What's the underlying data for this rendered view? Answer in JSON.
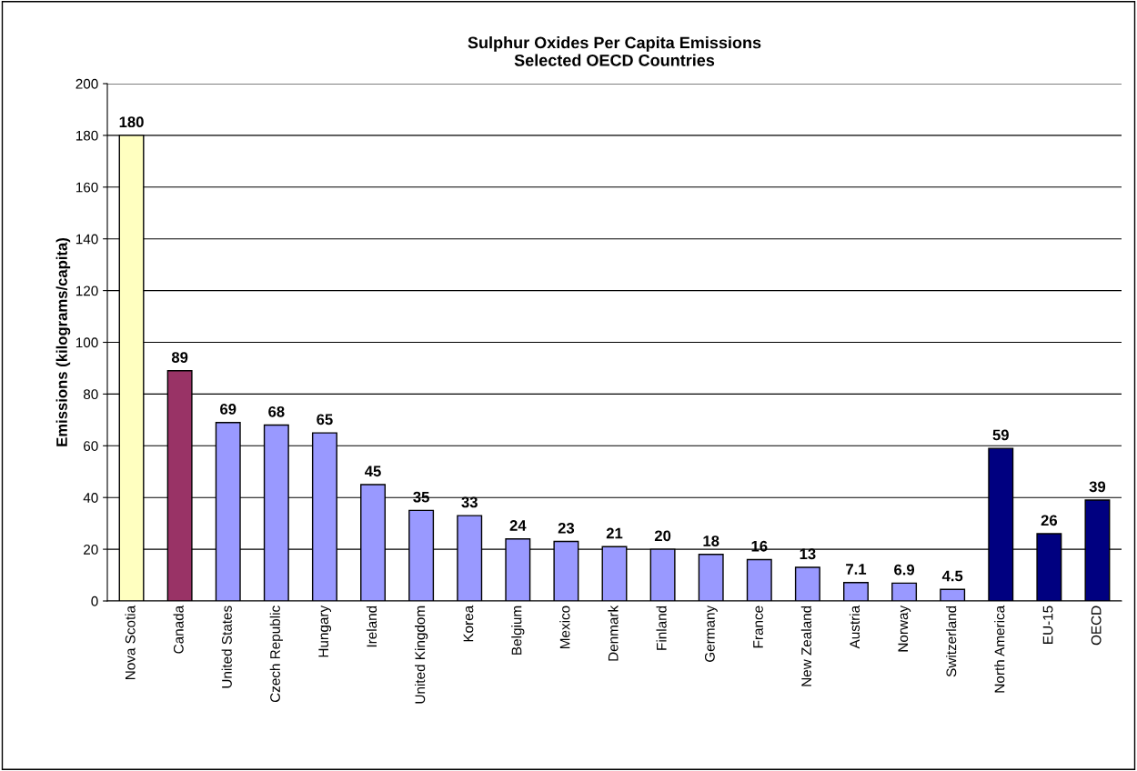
{
  "chart_data": {
    "type": "bar",
    "title": "Sulphur Oxides Per Capita Emissions\nSelected OECD Countries",
    "ylabel": "Emissions (kilograms/capita)",
    "categories": [
      "Nova Scotia",
      "Canada",
      "United States",
      "Czech Republic",
      "Hungary",
      "Ireland",
      "United Kingdom",
      "Korea",
      "Belgium",
      "Mexico",
      "Denmark",
      "Finland",
      "Germany",
      "France",
      "New Zealand",
      "Austria",
      "Norway",
      "Switzerland",
      "North America",
      "EU-15",
      "OECD"
    ],
    "values": [
      180,
      89,
      69,
      68,
      65,
      45,
      35,
      33,
      24,
      23,
      21,
      20,
      18,
      16,
      13,
      7.1,
      6.9,
      4.5,
      59,
      26,
      39
    ],
    "colors": [
      "#ffffc0",
      "#993366",
      "#9999ff",
      "#9999ff",
      "#9999ff",
      "#9999ff",
      "#9999ff",
      "#9999ff",
      "#9999ff",
      "#9999ff",
      "#9999ff",
      "#9999ff",
      "#9999ff",
      "#9999ff",
      "#9999ff",
      "#9999ff",
      "#9999ff",
      "#9999ff",
      "#000080",
      "#000080",
      "#000080"
    ],
    "ylim": [
      0,
      200
    ],
    "yticks": [
      0,
      20,
      40,
      60,
      80,
      100,
      120,
      140,
      160,
      180,
      200
    ],
    "grid": "y",
    "data_labels": true,
    "legend": false
  }
}
